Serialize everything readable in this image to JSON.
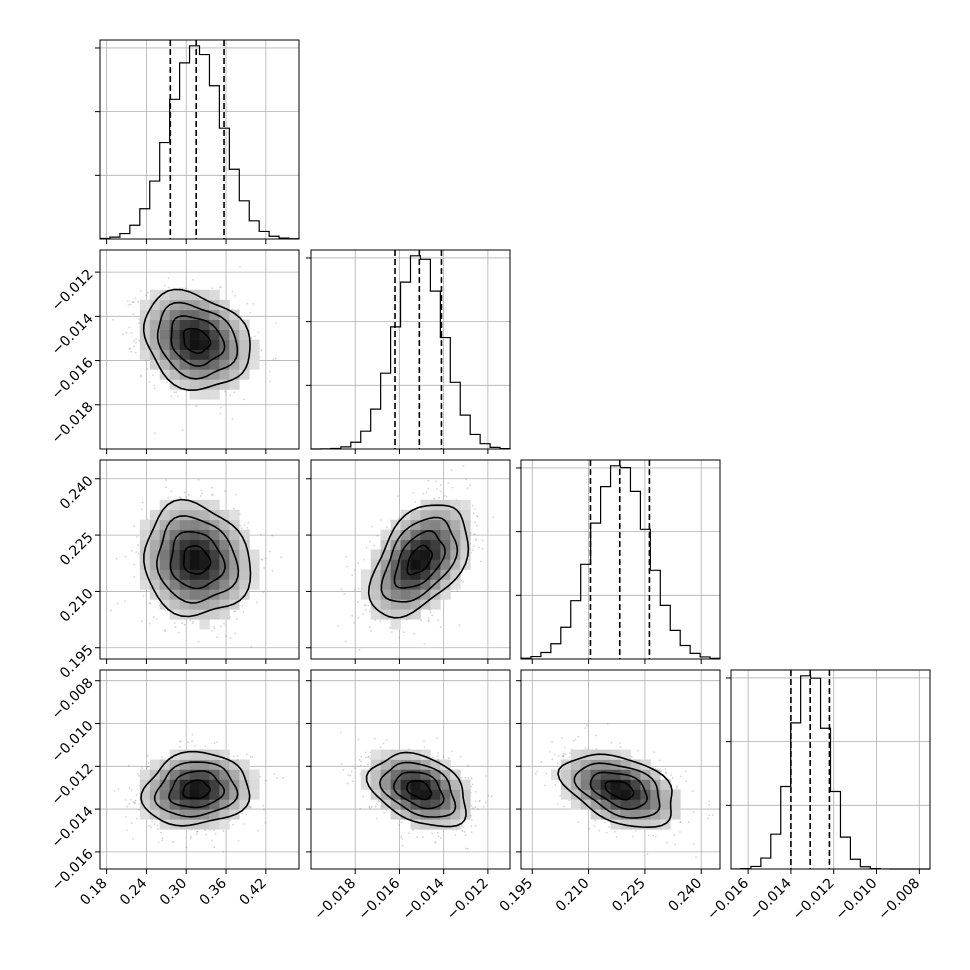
{
  "chart_data": {
    "type": "corner",
    "parameters": [
      {
        "range": [
          0.17,
          0.47
        ],
        "ticks": [
          0.18,
          0.24,
          0.3,
          0.36,
          0.42
        ],
        "tick_labels": [
          "0.18",
          "0.24",
          "0.30",
          "0.36",
          "0.42"
        ],
        "median": 0.315,
        "q16": 0.276,
        "q84": 0.357,
        "sd": 0.04
      },
      {
        "range": [
          -0.02,
          -0.011
        ],
        "ticks": [
          -0.018,
          -0.016,
          -0.014,
          -0.012
        ],
        "tick_labels": [
          "−0.018",
          "−0.016",
          "−0.014",
          "−0.012"
        ],
        "median": -0.0151,
        "q16": -0.0162,
        "q84": -0.0141,
        "sd": 0.0011
      },
      {
        "range": [
          0.192,
          0.245
        ],
        "ticks": [
          0.195,
          0.21,
          0.225,
          0.24
        ],
        "tick_labels": [
          "0.195",
          "0.210",
          "0.225",
          "0.240"
        ],
        "median": 0.2183,
        "q16": 0.2105,
        "q84": 0.2262,
        "sd": 0.0075
      },
      {
        "range": [
          -0.0168,
          -0.0075
        ],
        "ticks": [
          -0.016,
          -0.014,
          -0.012,
          -0.01,
          -0.008
        ],
        "tick_labels": [
          "−0.016",
          "−0.014",
          "−0.012",
          "−0.010",
          "−0.008"
        ],
        "median": -0.0131,
        "q16": -0.014,
        "q84": -0.0122,
        "sd": 0.00085
      }
    ],
    "correlations": {
      "1-0": -0.2,
      "2-0": -0.1,
      "2-1": 0.45,
      "3-0": 0.1,
      "3-1": -0.35,
      "3-2": -0.4
    },
    "quantiles": [
      0.16,
      0.5,
      0.84
    ],
    "grid": true,
    "legend": "none"
  }
}
